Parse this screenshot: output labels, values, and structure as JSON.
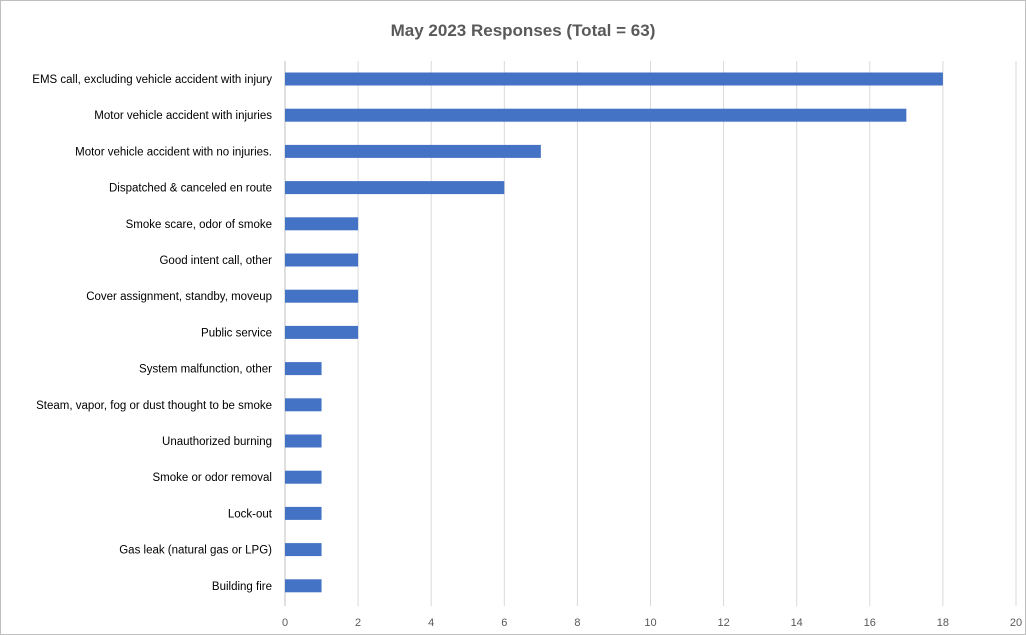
{
  "chart_data": {
    "type": "bar",
    "orientation": "horizontal",
    "title": "May 2023 Responses (Total = 63)",
    "xlabel": "",
    "ylabel": "",
    "xlim": [
      0,
      20
    ],
    "x_ticks": [
      0,
      2,
      4,
      6,
      8,
      10,
      12,
      14,
      16,
      18,
      20
    ],
    "grid": true,
    "legend": "none",
    "bar_color": "#4472C4",
    "categories": [
      "EMS call, excluding vehicle accident with injury",
      "Motor vehicle accident with injuries",
      "Motor vehicle accident with no injuries.",
      "Dispatched & canceled en route",
      "Smoke scare, odor of smoke",
      "Good intent call, other",
      "Cover assignment, standby, moveup",
      "Public service",
      "System malfunction, other",
      "Steam, vapor, fog or dust thought to be smoke",
      "Unauthorized burning",
      "Smoke or odor removal",
      "Lock-out",
      "Gas leak (natural gas or LPG)",
      "Building fire"
    ],
    "values": [
      18,
      17,
      7,
      6,
      2,
      2,
      2,
      2,
      1,
      1,
      1,
      1,
      1,
      1,
      1
    ]
  }
}
